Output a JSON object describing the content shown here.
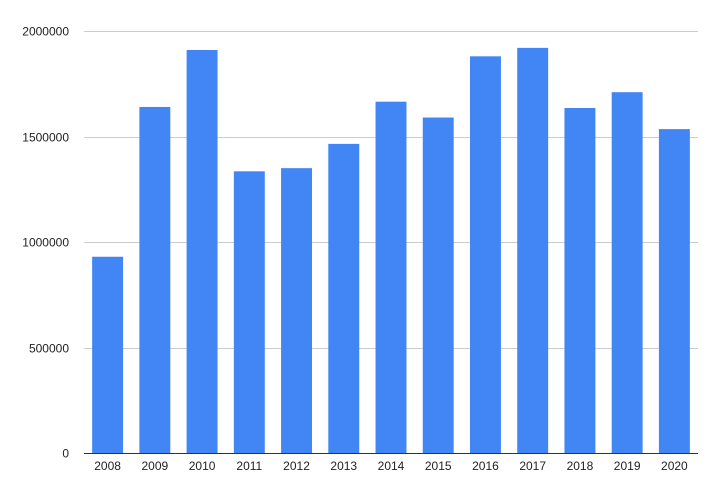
{
  "chart_data": {
    "type": "bar",
    "categories": [
      "2008",
      "2009",
      "2010",
      "2011",
      "2012",
      "2013",
      "2014",
      "2015",
      "2016",
      "2017",
      "2018",
      "2019",
      "2020"
    ],
    "values": [
      930000,
      1640000,
      1910000,
      1335000,
      1350000,
      1465000,
      1665000,
      1590000,
      1880000,
      1920000,
      1635000,
      1710000,
      1535000
    ],
    "ylim": [
      0,
      2000000
    ],
    "yticks": [
      "0",
      "500000",
      "1000000",
      "1500000",
      "2000000"
    ],
    "title": "",
    "xlabel": "",
    "ylabel": "",
    "grid": true,
    "legend": "none",
    "bar_color": "#4285f4",
    "grid_color": "#cccccc",
    "baseline_color": "#333333"
  }
}
